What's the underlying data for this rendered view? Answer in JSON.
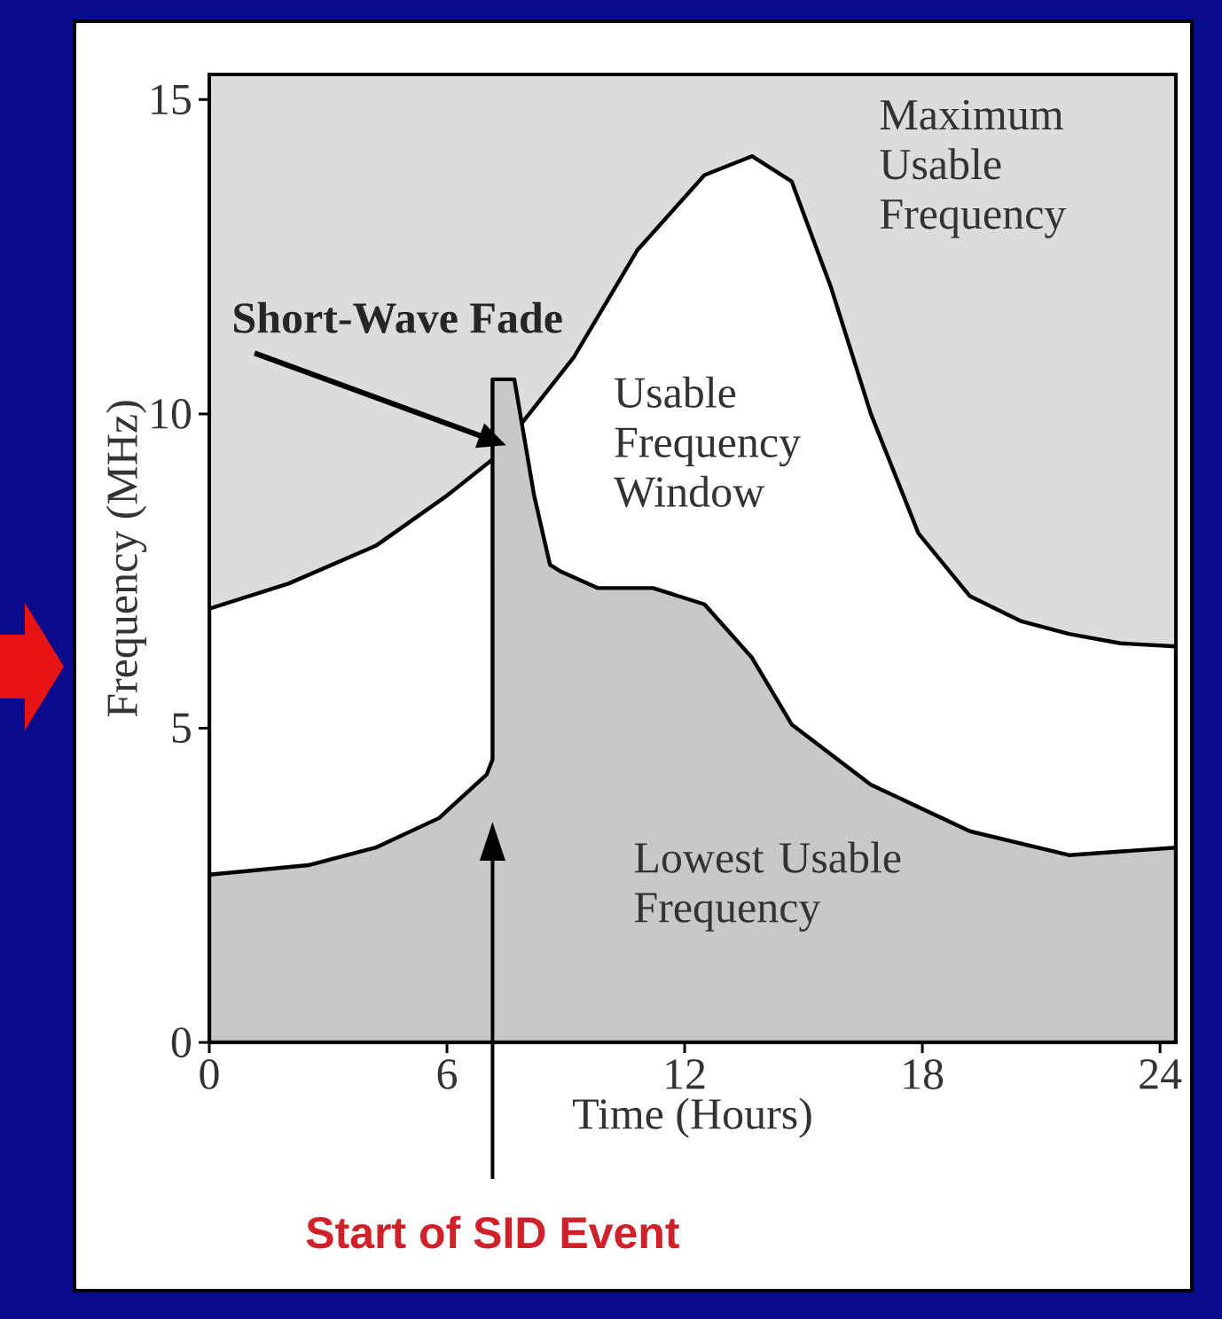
{
  "chart_data": {
    "type": "area",
    "xlabel": "Time (Hours)",
    "ylabel": "Frequency (MHz)",
    "xlim": [
      0,
      24.4
    ],
    "ylim": [
      0,
      15.4
    ],
    "xticks": [
      0,
      6,
      12,
      18,
      24
    ],
    "yticks": [
      0,
      5,
      10,
      15
    ],
    "series": [
      {
        "color": "#ffffff",
        "x": [
          0,
          2,
          4.2,
          6,
          7.2,
          9.2,
          10.8,
          12.5,
          13.7,
          14.7,
          15.7,
          16.7,
          17.9,
          19.2,
          20.5,
          21.7,
          23,
          24.4
        ],
        "values": [
          6.9,
          7.3,
          7.9,
          8.7,
          9.3,
          10.9,
          12.6,
          13.8,
          14.1,
          13.7,
          12.0,
          10.0,
          8.1,
          7.1,
          6.7,
          6.5,
          6.35,
          6.3
        ]
      },
      {
        "color": "#c8c8c8",
        "x": [
          0,
          2.5,
          4.2,
          5.8,
          7.0,
          7.15,
          7.15,
          7.7,
          8.2,
          8.6,
          8.85,
          9.8,
          11.2,
          12.5,
          13.7,
          14.7,
          16.7,
          19.2,
          21.7,
          24.4
        ],
        "values": [
          2.67,
          2.82,
          3.1,
          3.57,
          4.26,
          4.5,
          10.55,
          10.55,
          8.7,
          7.6,
          7.5,
          7.23,
          7.23,
          6.97,
          6.12,
          5.06,
          4.1,
          3.36,
          2.98,
          3.1
        ]
      }
    ],
    "annotations": [
      {
        "text": "**Short-Wave Fade**",
        "x": 7.5,
        "y": 9.5
      },
      "Maximum Usable Frequency",
      "Usable Frequency Window",
      "Lowest Usable Frequency",
      "Start of SID Event"
    ]
  }
}
